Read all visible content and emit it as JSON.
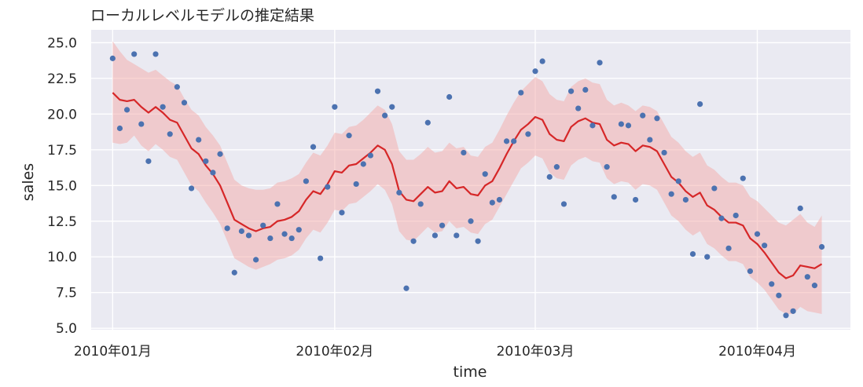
{
  "chart_data": {
    "type": "line",
    "title": "ローカルレベルモデルの推定結果",
    "xlabel": "time",
    "ylabel": "sales",
    "x_start": "2010-01-01",
    "x_end": "2010-04-10",
    "xlim": [
      "2009-12-29",
      "2010-04-14"
    ],
    "ylim": [
      4.9,
      25.9
    ],
    "grid": true,
    "x_ticks": [
      {
        "date": "2010-01-01",
        "label": "2010年01月"
      },
      {
        "date": "2010-02-01",
        "label": "2010年02月"
      },
      {
        "date": "2010-03-01",
        "label": "2010年03月"
      },
      {
        "date": "2010-04-01",
        "label": "2010年04月"
      }
    ],
    "y_ticks": [
      {
        "value": 5.0,
        "label": "5.0"
      },
      {
        "value": 7.5,
        "label": "7.5"
      },
      {
        "value": 10.0,
        "label": "10.0"
      },
      {
        "value": 12.5,
        "label": "12.5"
      },
      {
        "value": 15.0,
        "label": "15.0"
      },
      {
        "value": 17.5,
        "label": "17.5"
      },
      {
        "value": 20.0,
        "label": "20.0"
      },
      {
        "value": 22.5,
        "label": "22.5"
      },
      {
        "value": 25.0,
        "label": "25.0"
      }
    ],
    "colors": {
      "background": "#eaeaf2",
      "grid": "#ffffff",
      "points": "#4c72b0",
      "line": "#d62728",
      "band": "#f4a9a8"
    },
    "series": [
      {
        "type": "scatter",
        "points": [
          [
            "2010-01-01",
            23.9
          ],
          [
            "2010-01-02",
            19.0
          ],
          [
            "2010-01-03",
            20.3
          ],
          [
            "2010-01-04",
            24.2
          ],
          [
            "2010-01-05",
            19.3
          ],
          [
            "2010-01-06",
            16.7
          ],
          [
            "2010-01-07",
            24.2
          ],
          [
            "2010-01-08",
            20.5
          ],
          [
            "2010-01-09",
            18.6
          ],
          [
            "2010-01-10",
            21.9
          ],
          [
            "2010-01-11",
            20.8
          ],
          [
            "2010-01-12",
            14.8
          ],
          [
            "2010-01-13",
            18.2
          ],
          [
            "2010-01-14",
            16.7
          ],
          [
            "2010-01-15",
            15.9
          ],
          [
            "2010-01-16",
            17.2
          ],
          [
            "2010-01-17",
            12.0
          ],
          [
            "2010-01-18",
            8.9
          ],
          [
            "2010-01-19",
            11.8
          ],
          [
            "2010-01-20",
            11.5
          ],
          [
            "2010-01-21",
            9.8
          ],
          [
            "2010-01-22",
            12.2
          ],
          [
            "2010-01-23",
            11.3
          ],
          [
            "2010-01-24",
            13.7
          ],
          [
            "2010-01-25",
            11.6
          ],
          [
            "2010-01-26",
            11.3
          ],
          [
            "2010-01-27",
            11.9
          ],
          [
            "2010-01-28",
            15.3
          ],
          [
            "2010-01-29",
            17.7
          ],
          [
            "2010-01-30",
            9.9
          ],
          [
            "2010-01-31",
            14.9
          ],
          [
            "2010-02-01",
            20.5
          ],
          [
            "2010-02-02",
            13.1
          ],
          [
            "2010-02-03",
            18.5
          ],
          [
            "2010-02-04",
            15.1
          ],
          [
            "2010-02-05",
            16.5
          ],
          [
            "2010-02-06",
            17.1
          ],
          [
            "2010-02-07",
            21.6
          ],
          [
            "2010-02-08",
            19.9
          ],
          [
            "2010-02-09",
            20.5
          ],
          [
            "2010-02-10",
            14.5
          ],
          [
            "2010-02-11",
            7.8
          ],
          [
            "2010-02-12",
            11.1
          ],
          [
            "2010-02-13",
            13.7
          ],
          [
            "2010-02-14",
            19.4
          ],
          [
            "2010-02-15",
            11.5
          ],
          [
            "2010-02-16",
            12.2
          ],
          [
            "2010-02-17",
            21.2
          ],
          [
            "2010-02-18",
            11.5
          ],
          [
            "2010-02-19",
            17.3
          ],
          [
            "2010-02-20",
            12.5
          ],
          [
            "2010-02-21",
            11.1
          ],
          [
            "2010-02-22",
            15.8
          ],
          [
            "2010-02-23",
            13.8
          ],
          [
            "2010-02-24",
            14.0
          ],
          [
            "2010-02-25",
            18.1
          ],
          [
            "2010-02-26",
            18.1
          ],
          [
            "2010-02-27",
            21.5
          ],
          [
            "2010-02-28",
            18.6
          ],
          [
            "2010-03-01",
            23.0
          ],
          [
            "2010-03-02",
            23.7
          ],
          [
            "2010-03-03",
            15.6
          ],
          [
            "2010-03-04",
            16.3
          ],
          [
            "2010-03-05",
            13.7
          ],
          [
            "2010-03-06",
            21.6
          ],
          [
            "2010-03-07",
            20.4
          ],
          [
            "2010-03-08",
            21.7
          ],
          [
            "2010-03-09",
            19.2
          ],
          [
            "2010-03-10",
            23.6
          ],
          [
            "2010-03-11",
            16.3
          ],
          [
            "2010-03-12",
            14.2
          ],
          [
            "2010-03-13",
            19.3
          ],
          [
            "2010-03-14",
            19.2
          ],
          [
            "2010-03-15",
            14.0
          ],
          [
            "2010-03-16",
            19.9
          ],
          [
            "2010-03-17",
            18.2
          ],
          [
            "2010-03-18",
            19.7
          ],
          [
            "2010-03-19",
            17.3
          ],
          [
            "2010-03-20",
            14.4
          ],
          [
            "2010-03-21",
            15.3
          ],
          [
            "2010-03-22",
            14.0
          ],
          [
            "2010-03-23",
            10.2
          ],
          [
            "2010-03-24",
            20.7
          ],
          [
            "2010-03-25",
            10.0
          ],
          [
            "2010-03-26",
            14.8
          ],
          [
            "2010-03-27",
            12.7
          ],
          [
            "2010-03-28",
            10.6
          ],
          [
            "2010-03-29",
            12.9
          ],
          [
            "2010-03-30",
            15.5
          ],
          [
            "2010-03-31",
            9.0
          ],
          [
            "2010-04-01",
            11.6
          ],
          [
            "2010-04-02",
            10.8
          ],
          [
            "2010-04-03",
            8.1
          ],
          [
            "2010-04-04",
            7.3
          ],
          [
            "2010-04-05",
            5.9
          ],
          [
            "2010-04-06",
            6.2
          ],
          [
            "2010-04-07",
            13.4
          ],
          [
            "2010-04-08",
            8.6
          ],
          [
            "2010-04-09",
            8.0
          ],
          [
            "2010-04-10",
            10.7
          ]
        ]
      },
      {
        "type": "line",
        "points": [
          [
            "2010-01-01",
            21.5
          ],
          [
            "2010-01-02",
            21.0
          ],
          [
            "2010-01-03",
            20.9
          ],
          [
            "2010-01-04",
            21.0
          ],
          [
            "2010-01-05",
            20.5
          ],
          [
            "2010-01-06",
            20.1
          ],
          [
            "2010-01-07",
            20.5
          ],
          [
            "2010-01-08",
            20.1
          ],
          [
            "2010-01-09",
            19.6
          ],
          [
            "2010-01-10",
            19.4
          ],
          [
            "2010-01-11",
            18.5
          ],
          [
            "2010-01-12",
            17.6
          ],
          [
            "2010-01-13",
            17.2
          ],
          [
            "2010-01-14",
            16.4
          ],
          [
            "2010-01-15",
            15.8
          ],
          [
            "2010-01-16",
            15.0
          ],
          [
            "2010-01-17",
            13.8
          ],
          [
            "2010-01-18",
            12.6
          ],
          [
            "2010-01-19",
            12.3
          ],
          [
            "2010-01-20",
            12.0
          ],
          [
            "2010-01-21",
            11.8
          ],
          [
            "2010-01-22",
            12.0
          ],
          [
            "2010-01-23",
            12.1
          ],
          [
            "2010-01-24",
            12.5
          ],
          [
            "2010-01-25",
            12.6
          ],
          [
            "2010-01-26",
            12.8
          ],
          [
            "2010-01-27",
            13.2
          ],
          [
            "2010-01-28",
            14.0
          ],
          [
            "2010-01-29",
            14.6
          ],
          [
            "2010-01-30",
            14.4
          ],
          [
            "2010-01-31",
            15.1
          ],
          [
            "2010-02-01",
            16.0
          ],
          [
            "2010-02-02",
            15.9
          ],
          [
            "2010-02-03",
            16.4
          ],
          [
            "2010-02-04",
            16.5
          ],
          [
            "2010-02-05",
            16.9
          ],
          [
            "2010-02-06",
            17.3
          ],
          [
            "2010-02-07",
            17.8
          ],
          [
            "2010-02-08",
            17.5
          ],
          [
            "2010-02-09",
            16.5
          ],
          [
            "2010-02-10",
            14.6
          ],
          [
            "2010-02-11",
            14.0
          ],
          [
            "2010-02-12",
            13.9
          ],
          [
            "2010-02-13",
            14.4
          ],
          [
            "2010-02-14",
            14.9
          ],
          [
            "2010-02-15",
            14.5
          ],
          [
            "2010-02-16",
            14.6
          ],
          [
            "2010-02-17",
            15.3
          ],
          [
            "2010-02-18",
            14.8
          ],
          [
            "2010-02-19",
            14.9
          ],
          [
            "2010-02-20",
            14.4
          ],
          [
            "2010-02-21",
            14.3
          ],
          [
            "2010-02-22",
            15.0
          ],
          [
            "2010-02-23",
            15.3
          ],
          [
            "2010-02-24",
            16.2
          ],
          [
            "2010-02-25",
            17.2
          ],
          [
            "2010-02-26",
            18.1
          ],
          [
            "2010-02-27",
            18.9
          ],
          [
            "2010-02-28",
            19.3
          ],
          [
            "2010-03-01",
            19.8
          ],
          [
            "2010-03-02",
            19.6
          ],
          [
            "2010-03-03",
            18.6
          ],
          [
            "2010-03-04",
            18.2
          ],
          [
            "2010-03-05",
            18.1
          ],
          [
            "2010-03-06",
            19.1
          ],
          [
            "2010-03-07",
            19.5
          ],
          [
            "2010-03-08",
            19.7
          ],
          [
            "2010-03-09",
            19.4
          ],
          [
            "2010-03-10",
            19.3
          ],
          [
            "2010-03-11",
            18.2
          ],
          [
            "2010-03-12",
            17.8
          ],
          [
            "2010-03-13",
            18.0
          ],
          [
            "2010-03-14",
            17.9
          ],
          [
            "2010-03-15",
            17.4
          ],
          [
            "2010-03-16",
            17.8
          ],
          [
            "2010-03-17",
            17.7
          ],
          [
            "2010-03-18",
            17.4
          ],
          [
            "2010-03-19",
            16.5
          ],
          [
            "2010-03-20",
            15.6
          ],
          [
            "2010-03-21",
            15.2
          ],
          [
            "2010-03-22",
            14.6
          ],
          [
            "2010-03-23",
            14.2
          ],
          [
            "2010-03-24",
            14.5
          ],
          [
            "2010-03-25",
            13.6
          ],
          [
            "2010-03-26",
            13.3
          ],
          [
            "2010-03-27",
            12.8
          ],
          [
            "2010-03-28",
            12.4
          ],
          [
            "2010-03-29",
            12.4
          ],
          [
            "2010-03-30",
            12.2
          ],
          [
            "2010-03-31",
            11.3
          ],
          [
            "2010-04-01",
            10.9
          ],
          [
            "2010-04-02",
            10.3
          ],
          [
            "2010-04-03",
            9.6
          ],
          [
            "2010-04-04",
            8.9
          ],
          [
            "2010-04-05",
            8.5
          ],
          [
            "2010-04-06",
            8.7
          ],
          [
            "2010-04-07",
            9.4
          ],
          [
            "2010-04-08",
            9.3
          ],
          [
            "2010-04-09",
            9.2
          ],
          [
            "2010-04-10",
            9.5
          ]
        ]
      },
      {
        "type": "area",
        "x_from": "2010-01-01",
        "upper": [
          25.1,
          24.4,
          23.8,
          23.5,
          23.2,
          22.9,
          23.1,
          22.7,
          22.3,
          22.0,
          21.1,
          20.3,
          19.9,
          19.1,
          18.5,
          17.8,
          16.6,
          15.4,
          15.0,
          14.8,
          14.7,
          14.7,
          14.8,
          15.2,
          15.3,
          15.5,
          15.8,
          16.6,
          17.3,
          17.1,
          17.8,
          18.7,
          18.6,
          19.1,
          19.2,
          19.6,
          20.1,
          20.6,
          20.3,
          19.3,
          17.4,
          16.8,
          16.8,
          17.2,
          17.7,
          17.3,
          17.4,
          18.0,
          17.6,
          17.7,
          17.1,
          17.0,
          17.7,
          18.0,
          18.9,
          19.9,
          20.8,
          21.6,
          22.1,
          22.6,
          22.3,
          21.4,
          21.0,
          20.9,
          21.9,
          22.3,
          22.5,
          22.2,
          22.1,
          21.0,
          20.6,
          20.8,
          20.6,
          20.2,
          20.6,
          20.5,
          20.2,
          19.3,
          18.4,
          18.0,
          17.4,
          17.0,
          17.3,
          16.4,
          16.1,
          15.6,
          15.2,
          15.2,
          15.0,
          14.2,
          13.9,
          13.4,
          12.9,
          12.4,
          12.2,
          12.6,
          13.0,
          12.4,
          12.1,
          12.9
        ],
        "lower": [
          18.0,
          17.9,
          18.0,
          18.5,
          17.8,
          17.4,
          17.9,
          17.5,
          17.0,
          16.8,
          15.9,
          15.0,
          14.6,
          13.8,
          13.1,
          12.3,
          11.1,
          9.9,
          9.6,
          9.3,
          9.1,
          9.3,
          9.5,
          9.8,
          9.9,
          10.1,
          10.5,
          11.3,
          11.9,
          11.7,
          12.4,
          13.3,
          13.2,
          13.7,
          13.8,
          14.2,
          14.6,
          15.1,
          14.7,
          13.7,
          11.8,
          11.2,
          11.1,
          11.6,
          12.1,
          11.7,
          11.8,
          12.5,
          12.0,
          12.1,
          11.7,
          11.6,
          12.3,
          12.6,
          13.5,
          14.4,
          15.3,
          16.2,
          16.6,
          17.1,
          16.9,
          15.9,
          15.5,
          15.4,
          16.4,
          16.8,
          17.0,
          16.7,
          16.6,
          15.5,
          15.1,
          15.3,
          15.2,
          14.7,
          15.1,
          15.0,
          14.7,
          13.8,
          12.9,
          12.5,
          11.9,
          11.5,
          11.8,
          10.9,
          10.6,
          10.1,
          9.7,
          9.7,
          9.5,
          8.6,
          8.2,
          7.7,
          7.0,
          6.3,
          6.0,
          6.0,
          6.5,
          6.2,
          6.1,
          6.0
        ]
      }
    ]
  }
}
